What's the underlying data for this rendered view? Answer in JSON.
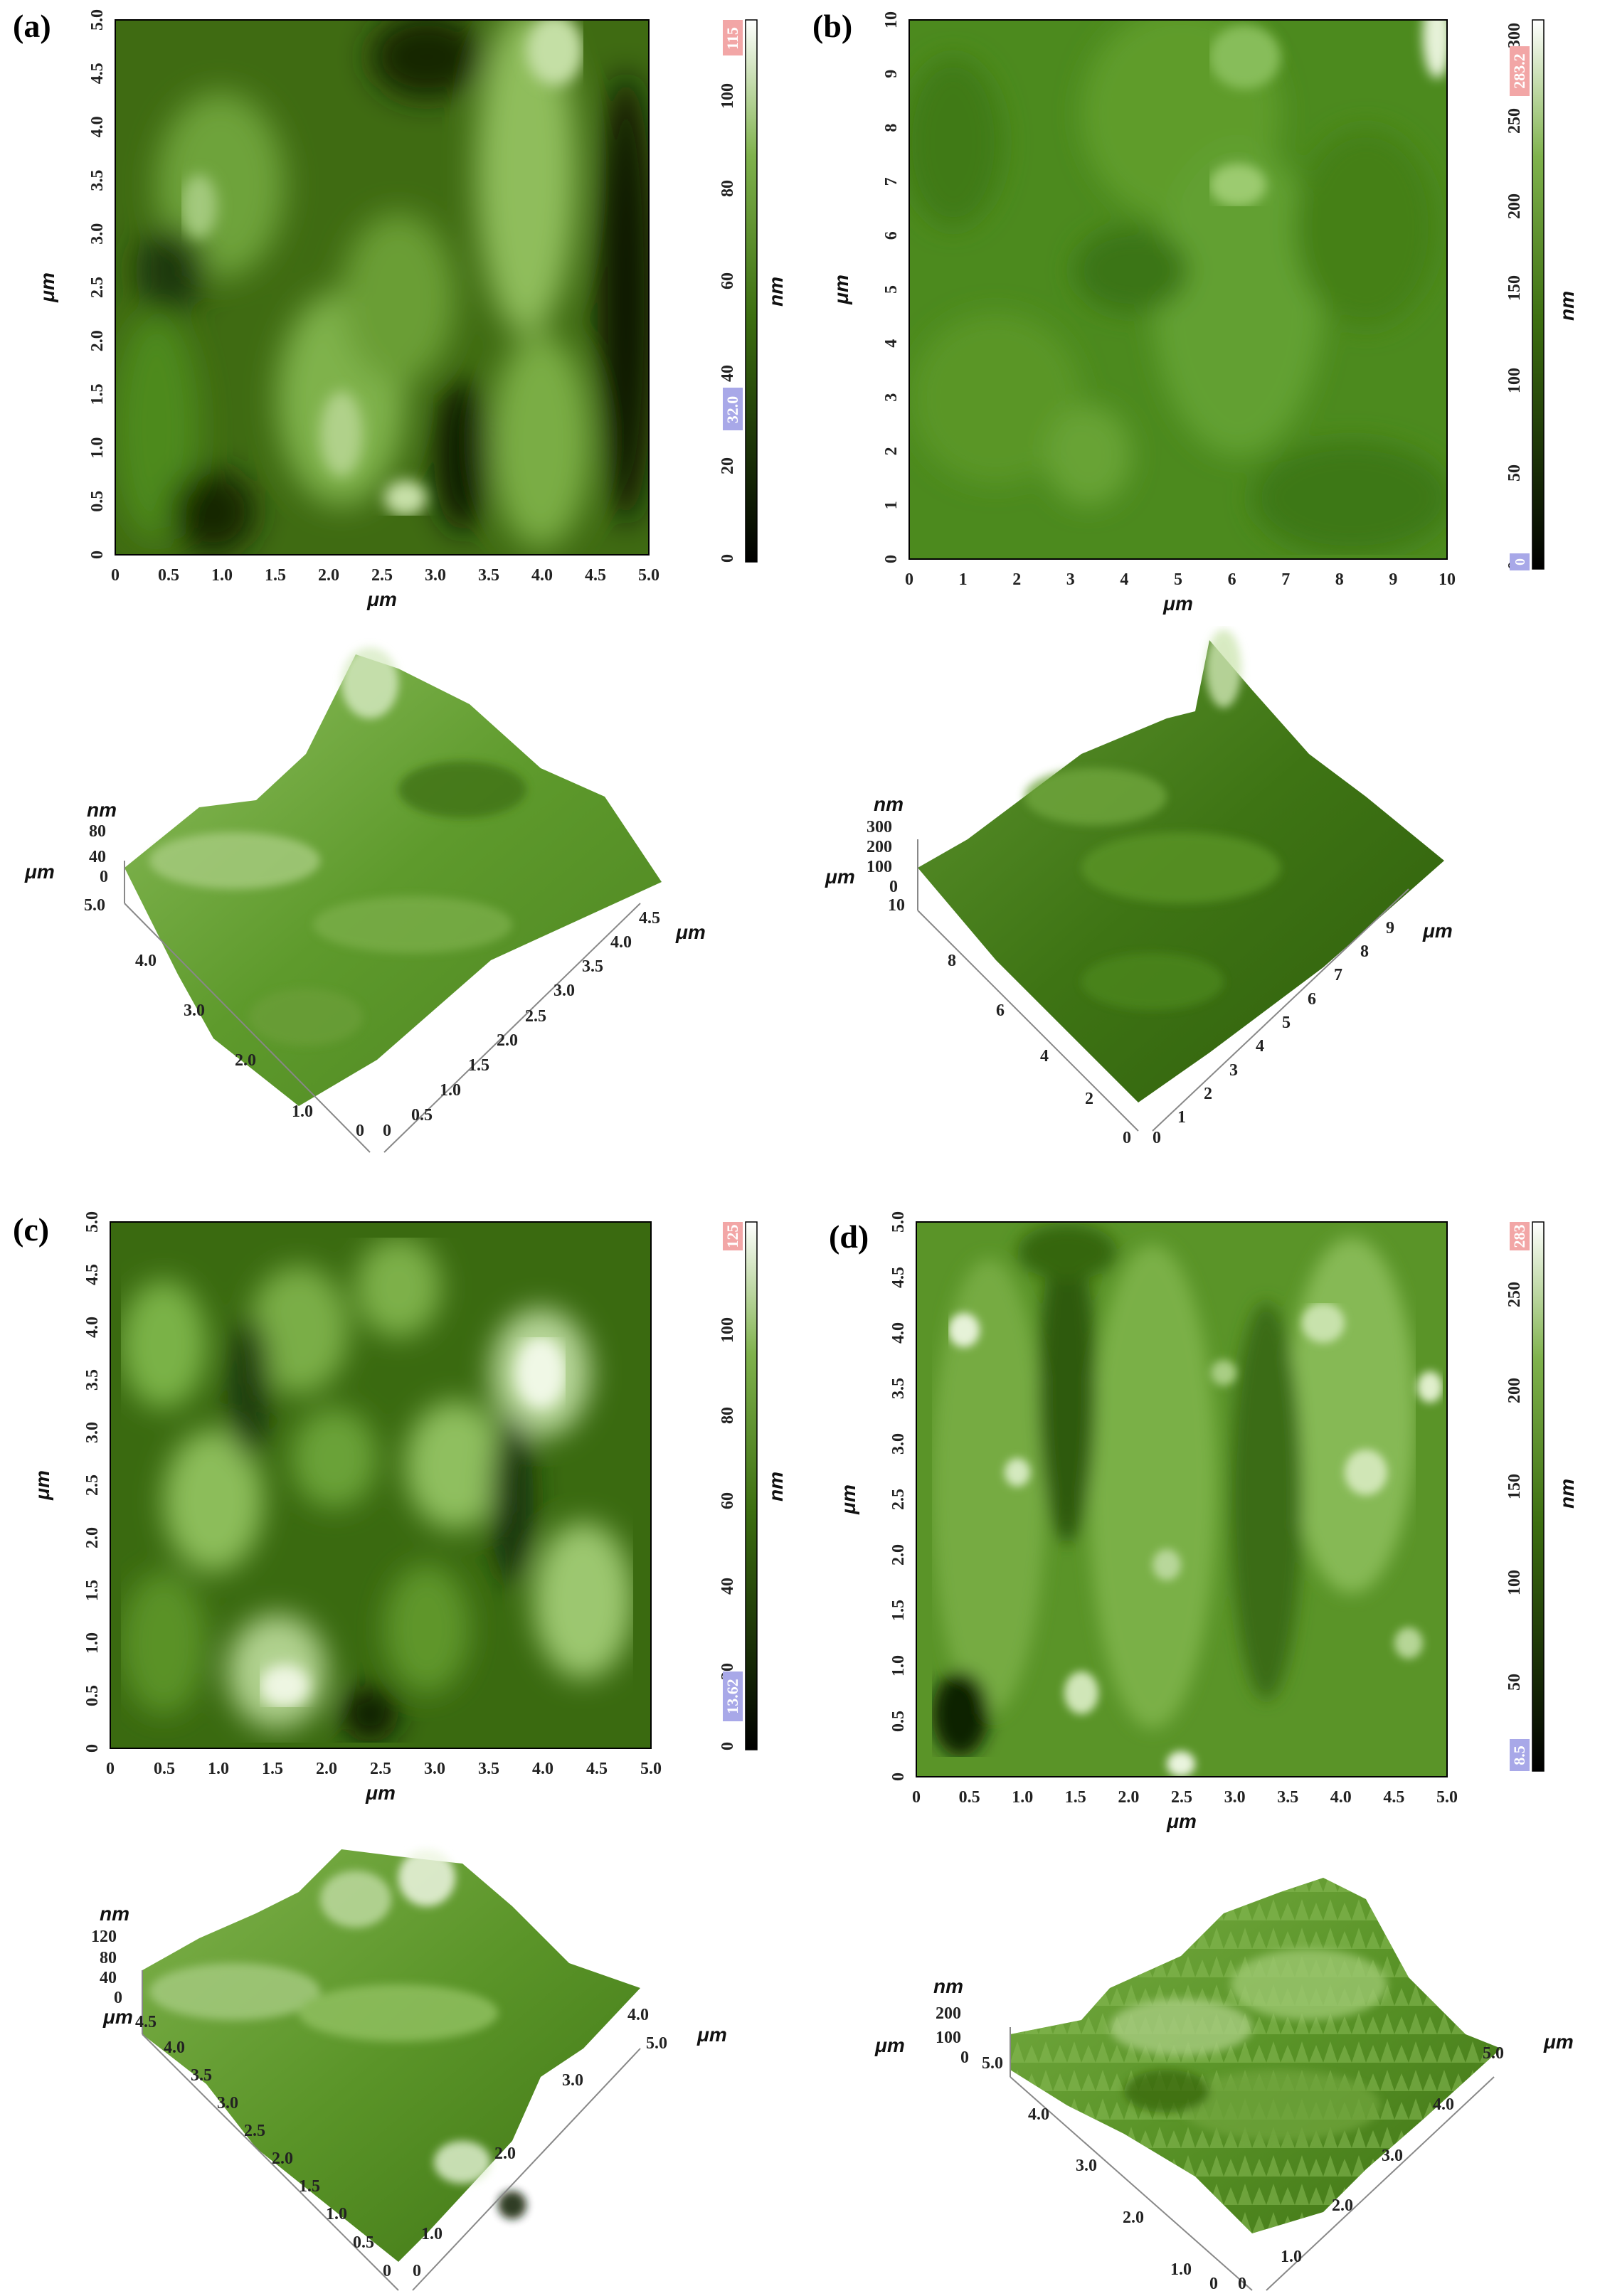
{
  "panels": [
    {
      "label": "(a)",
      "xticks": [
        "0",
        "0.5",
        "1.0",
        "1.5",
        "2.0",
        "2.5",
        "3.0",
        "3.5",
        "4.0",
        "4.5",
        "5.0"
      ],
      "yticks": [
        "0",
        "0.5",
        "1.0",
        "1.5",
        "2.0",
        "2.5",
        "3.0",
        "3.5",
        "4.0",
        "4.5",
        "5.0"
      ],
      "xlabel": "μm",
      "ylabel": "μm",
      "colorbar": {
        "ticks": [
          "0",
          "20",
          "40",
          "60",
          "80",
          "100"
        ],
        "unit": "nm",
        "max_marker": "115",
        "min_marker": "32.0"
      },
      "surface": {
        "z_unit": "nm",
        "z_ticks": [
          "0",
          "40",
          "80"
        ],
        "xy_unit": "μm",
        "left_ticks": [
          "0",
          "1.0",
          "2.0",
          "3.0",
          "4.0",
          "5.0"
        ],
        "right_ticks": [
          "0",
          "0.5",
          "1.0",
          "1.5",
          "2.0",
          "2.5",
          "3.0",
          "3.5",
          "4.0",
          "4.5"
        ],
        "right_unit": "μm"
      }
    },
    {
      "label": "(b)",
      "xticks": [
        "0",
        "1",
        "2",
        "3",
        "4",
        "5",
        "6",
        "7",
        "8",
        "9",
        "10"
      ],
      "yticks": [
        "0",
        "1",
        "2",
        "3",
        "4",
        "5",
        "6",
        "7",
        "8",
        "9",
        "10"
      ],
      "xlabel": "μm",
      "ylabel": "μm",
      "colorbar": {
        "ticks": [
          "0",
          "50",
          "100",
          "150",
          "200",
          "250",
          "300"
        ],
        "unit": "nm",
        "max_marker": "283.2",
        "min_marker": "0"
      },
      "surface": {
        "z_unit": "nm",
        "z_ticks": [
          "0",
          "100",
          "200",
          "300"
        ],
        "xy_unit": "μm",
        "left_ticks": [
          "0",
          "2",
          "4",
          "6",
          "8",
          "10"
        ],
        "right_ticks": [
          "0",
          "1",
          "2",
          "3",
          "4",
          "5",
          "6",
          "7",
          "8",
          "9"
        ],
        "right_unit": "μm"
      }
    },
    {
      "label": "(c)",
      "xticks": [
        "0",
        "0.5",
        "1.0",
        "1.5",
        "2.0",
        "2.5",
        "3.0",
        "3.5",
        "4.0",
        "4.5",
        "5.0"
      ],
      "yticks": [
        "0",
        "0.5",
        "1.0",
        "1.5",
        "2.0",
        "2.5",
        "3.0",
        "3.5",
        "4.0",
        "4.5",
        "5.0"
      ],
      "xlabel": "μm",
      "ylabel": "μm",
      "colorbar": {
        "ticks": [
          "0",
          "20",
          "40",
          "60",
          "80",
          "100"
        ],
        "unit": "nm",
        "max_marker": "125",
        "min_marker": "13.62"
      },
      "surface": {
        "z_unit": "nm",
        "z_ticks": [
          "0",
          "40",
          "80",
          "120"
        ],
        "xy_unit": "μm",
        "left_ticks": [
          "0",
          "0.5",
          "1.0",
          "1.5",
          "2.0",
          "2.5",
          "3.0",
          "3.5",
          "4.0",
          "4.5"
        ],
        "right_ticks": [
          "0",
          "1.0",
          "2.0",
          "3.0",
          "4.0",
          "5.0"
        ],
        "right_unit": "μm"
      }
    },
    {
      "label": "(d)",
      "xticks": [
        "0",
        "0.5",
        "1.0",
        "1.5",
        "2.0",
        "2.5",
        "3.0",
        "3.5",
        "4.0",
        "4.5",
        "5.0"
      ],
      "yticks": [
        "0",
        "0.5",
        "1.0",
        "1.5",
        "2.0",
        "2.5",
        "3.0",
        "3.5",
        "4.0",
        "4.5",
        "5.0"
      ],
      "xlabel": "μm",
      "ylabel": "μm",
      "colorbar": {
        "ticks": [
          "50",
          "100",
          "150",
          "200",
          "250"
        ],
        "unit": "nm",
        "max_marker": "283",
        "min_marker": "8.5"
      },
      "surface": {
        "z_unit": "nm",
        "z_ticks": [
          "0",
          "100",
          "200"
        ],
        "xy_unit": "μm",
        "left_ticks": [
          "0",
          "1.0",
          "2.0",
          "3.0",
          "4.0",
          "5.0"
        ],
        "right_ticks": [
          "0",
          "1.0",
          "2.0",
          "3.0",
          "4.0",
          "5.0"
        ],
        "right_unit": "μm"
      }
    }
  ]
}
